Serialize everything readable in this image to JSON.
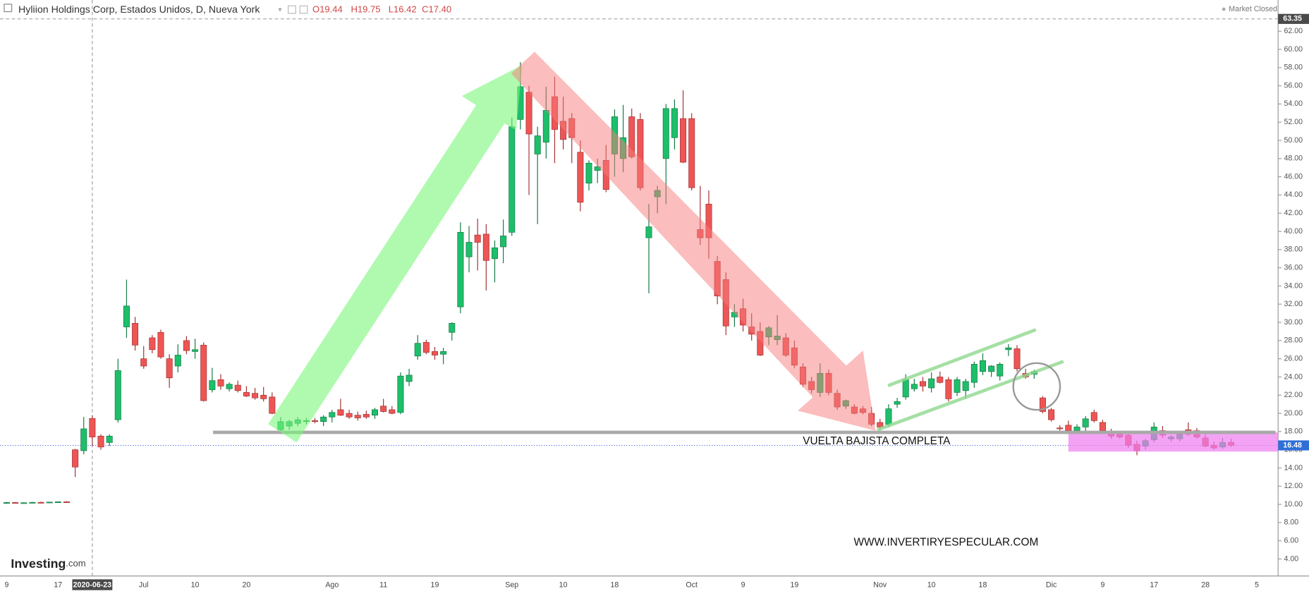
{
  "header": {
    "title": "Hyliion Holdings Corp, Estados Unidos, D, Nueva York",
    "ohlc": [
      "O19.44",
      "H19.75",
      "L16.42",
      "C17.40"
    ],
    "status": "Market Closed"
  },
  "logo": {
    "name": "Investing",
    "suffix": ".com"
  },
  "chart_data": {
    "type": "candlestick",
    "annotations": [
      "VUELTA BAJISTA COMPLETA",
      "WWW.INVERTIRYESPECULAR.COM"
    ],
    "up_color": "#1dbf6a",
    "down_color": "#ee5555",
    "ylim": [
      2.13,
      63.41
    ],
    "yticks": [
      {
        "value": 4,
        "label": "4.00"
      },
      {
        "value": 6,
        "label": "6.00"
      },
      {
        "value": 8,
        "label": "8.00"
      },
      {
        "value": 10,
        "label": "10.00"
      },
      {
        "value": 12,
        "label": "12.00"
      },
      {
        "value": 14,
        "label": "14.00"
      },
      {
        "value": 16,
        "label": "16.00"
      },
      {
        "value": 18,
        "label": "18.00"
      },
      {
        "value": 20,
        "label": "20.00"
      },
      {
        "value": 22,
        "label": "22.00"
      },
      {
        "value": 24,
        "label": "24.00"
      },
      {
        "value": 26,
        "label": "26.00"
      },
      {
        "value": 28,
        "label": "28.00"
      },
      {
        "value": 30,
        "label": "30.00"
      },
      {
        "value": 32,
        "label": "32.00"
      },
      {
        "value": 34,
        "label": "34.00"
      },
      {
        "value": 36,
        "label": "36.00"
      },
      {
        "value": 38,
        "label": "38.00"
      },
      {
        "value": 40,
        "label": "40.00"
      },
      {
        "value": 42,
        "label": "42.00"
      },
      {
        "value": 44,
        "label": "44.00"
      },
      {
        "value": 46,
        "label": "46.00"
      },
      {
        "value": 48,
        "label": "48.00"
      },
      {
        "value": 50,
        "label": "50.00"
      },
      {
        "value": 52,
        "label": "52.00"
      },
      {
        "value": 54,
        "label": "54.00"
      },
      {
        "value": 56,
        "label": "56.00"
      },
      {
        "value": 58,
        "label": "58.00"
      },
      {
        "value": 60,
        "label": "60.00"
      },
      {
        "value": 62,
        "label": "62.00"
      }
    ],
    "last_price": 16.48,
    "crosshair_price": 63.35,
    "crosshair_index": 10,
    "categories": [
      "9",
      null,
      null,
      null,
      null,
      null,
      "17",
      null,
      null,
      null,
      "2020-06-23",
      null,
      null,
      null,
      null,
      null,
      "Jul",
      null,
      null,
      null,
      null,
      null,
      "10",
      null,
      null,
      null,
      null,
      null,
      "20",
      null,
      null,
      null,
      null,
      null,
      null,
      null,
      null,
      null,
      "Ago",
      null,
      null,
      null,
      null,
      null,
      "11",
      null,
      null,
      null,
      null,
      null,
      "19",
      null,
      null,
      null,
      null,
      null,
      null,
      null,
      null,
      "Sep",
      null,
      null,
      null,
      null,
      null,
      "10",
      null,
      null,
      null,
      null,
      null,
      "18",
      null,
      null,
      null,
      null,
      null,
      null,
      null,
      null,
      "Oct",
      null,
      null,
      null,
      null,
      null,
      "9",
      null,
      null,
      null,
      null,
      null,
      "19",
      null,
      null,
      null,
      null,
      null,
      null,
      null,
      null,
      null,
      "Nov",
      null,
      null,
      null,
      null,
      null,
      "10",
      null,
      null,
      null,
      null,
      null,
      "18",
      null,
      null,
      null,
      null,
      null,
      null,
      null,
      "Dic",
      null,
      null,
      null,
      null,
      null,
      "9",
      null,
      null,
      null,
      null,
      null,
      "17",
      null,
      null,
      null,
      null,
      null,
      "28",
      null,
      null,
      null,
      null,
      null,
      "5"
    ],
    "open": [
      10.15,
      10.2,
      10.15,
      10.18,
      10.22,
      10.2,
      10.25,
      10.28,
      16,
      15.9,
      19.44,
      17.5,
      16.8,
      19.3,
      29.5,
      29.9,
      26,
      28.3,
      28.9,
      26,
      25.2,
      28,
      26.8,
      27.5,
      22.6,
      23.7,
      22.7,
      23.1,
      22.3,
      22.2,
      22,
      21.8,
      18.2,
      18.6,
      18.9,
      19.1,
      19.2,
      19.1,
      19.6,
      20.4,
      20,
      19.8,
      19.9,
      19.8,
      20.8,
      20.4,
      20.1,
      23.5,
      26.3,
      27.8,
      26.8,
      26.5,
      28.9,
      31.7,
      37.2,
      39.6,
      39.7,
      37,
      38.3,
      39.9,
      52.3,
      55.3,
      48.5,
      49.8,
      54.8,
      52.1,
      52.4,
      48.7,
      45.3,
      46.7,
      47.8,
      48.5,
      48,
      52.6,
      52.3,
      39.3,
      43.8,
      48,
      50.3,
      52.4,
      52.4,
      40.2,
      43,
      36.7,
      34.7,
      30.6,
      31.5,
      29.5,
      29,
      28.4,
      28.1,
      28.3,
      27.2,
      25.1,
      23.5,
      22.3,
      24.4,
      22.2,
      20.8,
      20.7,
      20.5,
      20,
      19,
      18.8,
      21,
      21.8,
      22.7,
      23.5,
      22.8,
      24,
      23.7,
      22.3,
      22.5,
      23.4,
      24.6,
      24.6,
      24.1,
      27,
      27.1,
      24.4,
      24.3,
      21.7,
      20.4,
      18.4,
      18.7,
      18.1,
      18.5,
      20.1,
      19,
      17.8,
      17.7,
      17.6,
      16.6,
      16.4,
      17.1,
      18.1,
      17.2,
      17.2,
      18.2,
      18.1,
      17.3,
      16.5,
      16.3,
      16.8,
      null,
      null,
      null
    ],
    "high": [
      10.25,
      10.25,
      10.22,
      10.26,
      10.3,
      10.28,
      10.32,
      10.35,
      16.1,
      19.6,
      19.75,
      17.7,
      17.7,
      26,
      34.7,
      30.6,
      27.4,
      28.6,
      29.2,
      26.5,
      27.6,
      28.5,
      28.2,
      27.8,
      25,
      24.3,
      23.4,
      23.6,
      23,
      22.8,
      22.9,
      22.3,
      19.6,
      19.3,
      19.6,
      19.5,
      19.5,
      19.8,
      20.4,
      21.6,
      20.4,
      20.2,
      20.3,
      20.6,
      21.6,
      20.8,
      24.5,
      24.9,
      28.6,
      28.1,
      27.3,
      27.2,
      30,
      41,
      40.6,
      41.4,
      40.8,
      39,
      41.3,
      52.5,
      58.6,
      56,
      51.5,
      55.9,
      57,
      54.8,
      53,
      50,
      47.8,
      48,
      49.5,
      53.4,
      53.9,
      53.5,
      53,
      43,
      45,
      54,
      54.5,
      55.5,
      53,
      45,
      44.5,
      37.3,
      35.5,
      32,
      32.6,
      31,
      30,
      29.6,
      30.8,
      28.8,
      28,
      25.5,
      24,
      25.5,
      24.8,
      22.6,
      21.5,
      21,
      20.8,
      20.7,
      19.4,
      21,
      21.7,
      24.3,
      23.8,
      24,
      24.5,
      24.6,
      24,
      24,
      23.8,
      25.7,
      26.6,
      25.3,
      25.6,
      27.6,
      27.5,
      24.9,
      24.8,
      21.9,
      20.6,
      18.7,
      19.2,
      18.8,
      19.7,
      20.4,
      19.3,
      18.3,
      18,
      17.9,
      17,
      17.2,
      19,
      18.6,
      17.6,
      18.1,
      19,
      18.4,
      17.7,
      16.9,
      17.3,
      17.2,
      null,
      null,
      null
    ],
    "low": [
      10.05,
      10.1,
      10.08,
      10.1,
      10.14,
      10.12,
      10.18,
      10.2,
      13,
      15.5,
      16.42,
      16,
      16.4,
      19,
      28.3,
      26.9,
      24.9,
      26.6,
      26,
      22.8,
      24.5,
      26.5,
      26,
      21.3,
      22.3,
      22.6,
      22.4,
      22.3,
      21.8,
      21.5,
      21.3,
      19.9,
      17.9,
      18.2,
      18.6,
      18.8,
      18.9,
      18.6,
      19,
      19.7,
      19.4,
      19.2,
      19.4,
      19.4,
      20.1,
      19.9,
      19.9,
      23,
      25.9,
      26.5,
      25.9,
      25.4,
      28,
      31,
      35.5,
      35.7,
      33.5,
      34.4,
      36.5,
      39.5,
      51.2,
      44,
      40.8,
      48,
      47.5,
      49,
      47.5,
      42.2,
      44.5,
      45.3,
      44.3,
      46,
      46.5,
      48,
      44.5,
      33.2,
      42,
      43,
      49,
      47.5,
      44.5,
      38.5,
      37,
      32,
      28.6,
      29.5,
      29,
      28,
      26.3,
      27.5,
      27.5,
      26.2,
      25,
      22.9,
      22.2,
      21.8,
      22,
      20.4,
      20.5,
      19.9,
      19.9,
      18.6,
      18.2,
      18.5,
      20.6,
      21.5,
      22.4,
      22.4,
      22.3,
      23.3,
      21.3,
      21.9,
      21.6,
      22.8,
      24.2,
      24,
      23.6,
      26.3,
      24.6,
      23.8,
      23.8,
      20,
      19.1,
      18.1,
      17.9,
      17.8,
      18,
      19,
      17.9,
      17.2,
      17.2,
      16.2,
      15.4,
      16,
      16.8,
      17.3,
      16.9,
      16.9,
      17.5,
      17.2,
      16.3,
      16,
      16.1,
      16.3,
      null,
      null,
      null
    ],
    "close": [
      10.2,
      10.15,
      10.18,
      10.22,
      10.2,
      10.25,
      10.28,
      10.24,
      14.1,
      18.3,
      17.4,
      16.3,
      17.5,
      24.7,
      31.8,
      27.5,
      25.2,
      27,
      26.2,
      23.9,
      26.4,
      26.9,
      27,
      21.4,
      23.6,
      23,
      23.2,
      22.5,
      21.9,
      21.7,
      21.6,
      20,
      19.1,
      19.1,
      19.3,
      19.2,
      19.1,
      19.6,
      20.1,
      19.8,
      19.6,
      19.5,
      19.6,
      20.4,
      20.2,
      20,
      24.1,
      24.2,
      27.7,
      26.7,
      26.4,
      26.8,
      29.9,
      39.9,
      38.8,
      38.8,
      36.8,
      38.2,
      39.5,
      51.5,
      55.9,
      50.7,
      50.5,
      53.3,
      51.2,
      50.1,
      50.3,
      43.2,
      47.5,
      47.1,
      44.6,
      52.6,
      50.3,
      48.2,
      44.8,
      40.5,
      44.5,
      53.5,
      53.5,
      47.6,
      44.8,
      39.3,
      39.3,
      32.9,
      29.6,
      31.1,
      29.7,
      28.7,
      26.4,
      29.4,
      28.5,
      26.4,
      25.3,
      23.2,
      22.6,
      24.4,
      22.3,
      20.7,
      21.4,
      20,
      20.1,
      18.8,
      18.5,
      20.5,
      21.3,
      23.7,
      23.2,
      23,
      23.8,
      23.4,
      21.6,
      23.7,
      23.5,
      25.4,
      25.8,
      25.2,
      25.4,
      27.2,
      24.9,
      24,
      24.6,
      20.2,
      19.3,
      18.3,
      18.1,
      18.5,
      19.4,
      19.2,
      18.1,
      17.5,
      17.4,
      16.5,
      15.9,
      17,
      18.5,
      17.6,
      17.4,
      17.7,
      17.7,
      17.4,
      16.4,
      16.2,
      16.8,
      16.48,
      null,
      null,
      null
    ]
  }
}
